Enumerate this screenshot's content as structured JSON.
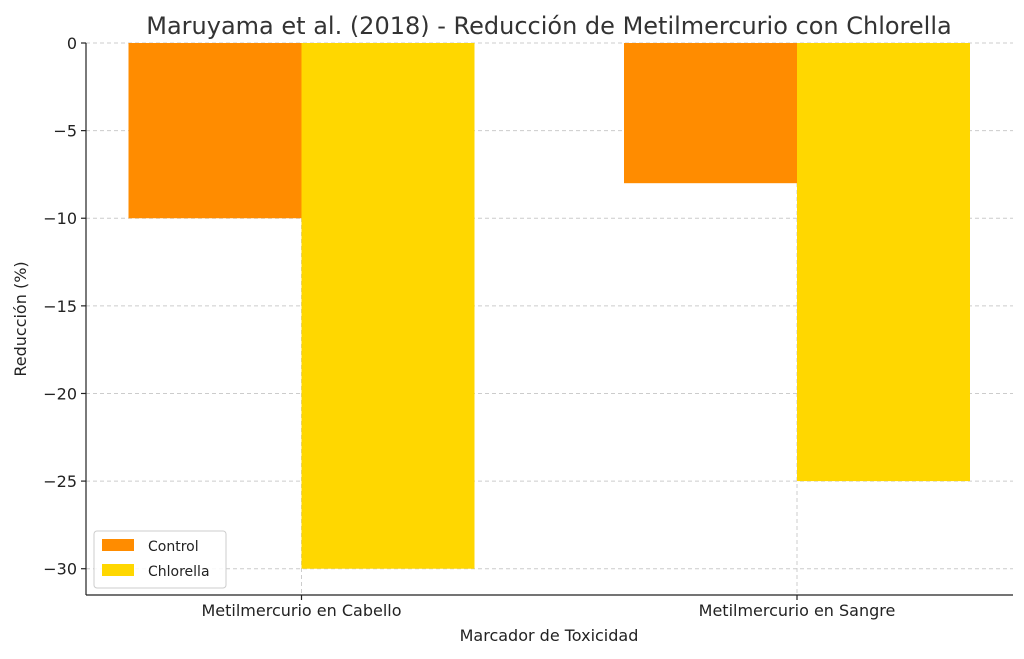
{
  "chart_data": {
    "type": "bar",
    "title": "Maruyama et al. (2018) - Reducción de Metilmercurio con Chlorella",
    "xlabel": "Marcador de Toxicidad",
    "ylabel": "Reducción (%)",
    "categories": [
      "Metilmercurio en Cabello",
      "Metilmercurio en Sangre"
    ],
    "series": [
      {
        "name": "Control",
        "values": [
          -10,
          -8
        ],
        "color": "#FF8C00"
      },
      {
        "name": "Chlorella",
        "values": [
          -30,
          -25
        ],
        "color": "#FFD700"
      }
    ],
    "ylim": [
      -31.5,
      0
    ],
    "yticks": [
      0,
      -5,
      -10,
      -15,
      -20,
      -25,
      -30
    ],
    "ytick_labels": [
      "0",
      "−5",
      "−10",
      "−15",
      "−20",
      "−25",
      "−30"
    ],
    "grid": true,
    "legend_position": "lower-left"
  }
}
